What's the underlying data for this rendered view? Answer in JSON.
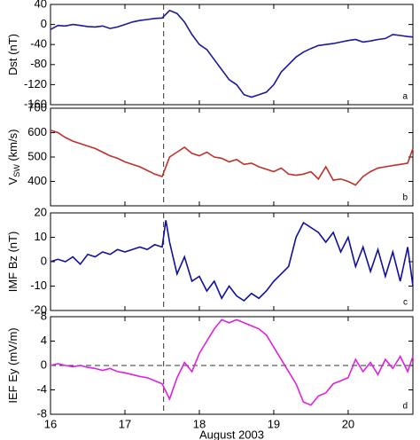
{
  "chart_data": [
    {
      "type": "line",
      "ylabel": "Dst (nT)",
      "panel": "a",
      "x": [
        16.0,
        16.1,
        16.2,
        16.3,
        16.4,
        16.5,
        16.6,
        16.7,
        16.8,
        16.9,
        17.0,
        17.1,
        17.2,
        17.3,
        17.4,
        17.5,
        17.6,
        17.7,
        17.8,
        17.9,
        18.0,
        18.1,
        18.2,
        18.3,
        18.4,
        18.5,
        18.6,
        18.7,
        18.8,
        18.9,
        19.0,
        19.1,
        19.2,
        19.3,
        19.4,
        19.5,
        19.6,
        19.7,
        19.8,
        19.9,
        20.0,
        20.1,
        20.2,
        20.3,
        20.4,
        20.5,
        20.6,
        20.7,
        20.8,
        20.87
      ],
      "series": [
        {
          "color": "#1a1a9c",
          "values": [
            -10,
            -2,
            -3,
            0,
            -2,
            -4,
            -5,
            -3,
            -8,
            -5,
            0,
            5,
            8,
            10,
            12,
            13,
            28,
            22,
            5,
            -20,
            -40,
            -50,
            -70,
            -90,
            -110,
            -120,
            -140,
            -145,
            -140,
            -135,
            -120,
            -95,
            -80,
            -65,
            -55,
            -48,
            -42,
            -40,
            -38,
            -35,
            -32,
            -30,
            -35,
            -33,
            -30,
            -28,
            -20,
            -22,
            -24,
            -25
          ]
        }
      ],
      "xlim": [
        16,
        20.87
      ],
      "ylim": [
        -160,
        40
      ],
      "yticks": [
        -160,
        -120,
        -80,
        -40,
        0,
        40
      ],
      "xticks": [
        16,
        17,
        18,
        19,
        20
      ],
      "vline": 17.52
    },
    {
      "type": "line",
      "ylabel": "V",
      "ylabel_sub": "SW",
      "ylabel_rest": " (km/s)",
      "panel": "b",
      "x": [
        16.0,
        16.1,
        16.2,
        16.3,
        16.4,
        16.5,
        16.6,
        16.7,
        16.8,
        16.9,
        17.0,
        17.1,
        17.2,
        17.3,
        17.4,
        17.5,
        17.6,
        17.7,
        17.8,
        17.9,
        18.0,
        18.1,
        18.2,
        18.3,
        18.4,
        18.5,
        18.6,
        18.7,
        18.8,
        18.9,
        19.0,
        19.1,
        19.2,
        19.3,
        19.4,
        19.5,
        19.6,
        19.7,
        19.8,
        19.9,
        20.0,
        20.1,
        20.2,
        20.3,
        20.4,
        20.5,
        20.6,
        20.7,
        20.8,
        20.87
      ],
      "series": [
        {
          "color": "#c0302a",
          "values": [
            610,
            600,
            580,
            565,
            555,
            545,
            535,
            520,
            505,
            495,
            480,
            470,
            460,
            445,
            430,
            420,
            500,
            520,
            540,
            515,
            505,
            520,
            500,
            495,
            480,
            490,
            470,
            475,
            460,
            450,
            440,
            455,
            430,
            425,
            430,
            440,
            410,
            460,
            405,
            410,
            400,
            385,
            420,
            440,
            455,
            460,
            465,
            470,
            475,
            535
          ]
        }
      ],
      "xlim": [
        16,
        20.87
      ],
      "ylim": [
        300,
        700
      ],
      "yticks": [
        400,
        500,
        600,
        700
      ],
      "xticks": [
        16,
        17,
        18,
        19,
        20
      ],
      "vline": 17.52
    },
    {
      "type": "line",
      "ylabel": "IMF Bz (nT)",
      "panel": "c",
      "x": [
        16.0,
        16.1,
        16.2,
        16.3,
        16.4,
        16.5,
        16.6,
        16.7,
        16.8,
        16.9,
        17.0,
        17.1,
        17.2,
        17.3,
        17.4,
        17.5,
        17.55,
        17.6,
        17.7,
        17.8,
        17.9,
        18.0,
        18.1,
        18.2,
        18.3,
        18.4,
        18.5,
        18.6,
        18.7,
        18.8,
        18.9,
        19.0,
        19.1,
        19.2,
        19.3,
        19.4,
        19.5,
        19.6,
        19.7,
        19.8,
        19.9,
        20.0,
        20.1,
        20.2,
        20.3,
        20.4,
        20.5,
        20.6,
        20.7,
        20.8,
        20.87
      ],
      "series": [
        {
          "color": "#1010a0",
          "values": [
            0,
            1,
            0,
            2,
            -1,
            3,
            2,
            4,
            3,
            5,
            4,
            5,
            6,
            5,
            7,
            6,
            17,
            8,
            -5,
            2,
            -8,
            -6,
            -12,
            -8,
            -15,
            -10,
            -14,
            -16,
            -13,
            -15,
            -12,
            -8,
            -5,
            -2,
            10,
            16,
            14,
            12,
            8,
            12,
            4,
            10,
            -2,
            6,
            -4,
            5,
            -6,
            4,
            -8,
            6,
            -10
          ]
        }
      ],
      "xlim": [
        16,
        20.87
      ],
      "ylim": [
        -20,
        20
      ],
      "yticks": [
        -20,
        -10,
        0,
        10,
        20
      ],
      "xticks": [
        16,
        17,
        18,
        19,
        20
      ],
      "vline": 17.52
    },
    {
      "type": "line",
      "ylabel": "IEF Ey (mV/m)",
      "panel": "d",
      "xlabel": "August  2003",
      "x": [
        16.0,
        16.1,
        16.2,
        16.3,
        16.4,
        16.5,
        16.6,
        16.7,
        16.8,
        16.9,
        17.0,
        17.1,
        17.2,
        17.3,
        17.4,
        17.5,
        17.6,
        17.7,
        17.8,
        17.9,
        18.0,
        18.1,
        18.2,
        18.3,
        18.4,
        18.5,
        18.6,
        18.7,
        18.8,
        18.9,
        19.0,
        19.1,
        19.2,
        19.3,
        19.4,
        19.5,
        19.6,
        19.7,
        19.8,
        19.9,
        20.0,
        20.1,
        20.2,
        20.3,
        20.4,
        20.5,
        20.6,
        20.7,
        20.8,
        20.87
      ],
      "series": [
        {
          "color": "#e020e0",
          "values": [
            0,
            0.3,
            0,
            -0.2,
            0,
            -0.3,
            -0.5,
            -0.8,
            -0.5,
            -1,
            -1.2,
            -1.5,
            -1.8,
            -2,
            -2.5,
            -3,
            -5.5,
            -2,
            0.5,
            -1,
            2,
            4,
            6,
            7.5,
            7,
            7.5,
            7,
            6.5,
            6,
            5,
            3,
            1,
            -1,
            -3,
            -6,
            -6.5,
            -5,
            -4.5,
            -3,
            -2.5,
            -2,
            1,
            -1,
            0.5,
            -1.5,
            1,
            -0.5,
            1.5,
            -1,
            1.5
          ]
        }
      ],
      "xlim": [
        16,
        20.87
      ],
      "ylim": [
        -8,
        8
      ],
      "yticks": [
        -8,
        -4,
        0,
        4,
        8
      ],
      "xticks": [
        16,
        17,
        18,
        19,
        20
      ],
      "vline": 17.52,
      "hline": 0
    }
  ]
}
